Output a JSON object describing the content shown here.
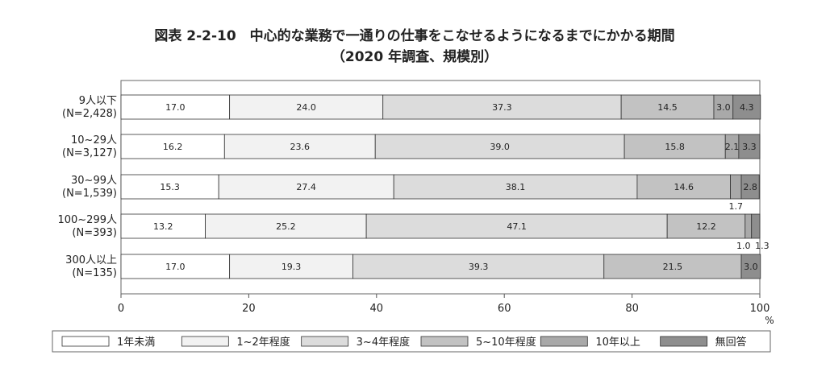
{
  "chart_data": {
    "type": "bar",
    "orientation": "horizontal",
    "stacked": true,
    "title": "図表 2-2-10　中心的な業務で一通りの仕事をこなせるようになるまでにかかる期間",
    "subtitle": "（2020 年調査、規模別）",
    "x_unit": "%",
    "xlim": [
      0,
      100
    ],
    "x_ticks": [
      0,
      20,
      40,
      60,
      80,
      100
    ],
    "grid": false,
    "legend_position": "bottom",
    "categories": [
      [
        "9人以下",
        "(N=2,428)"
      ],
      [
        "10~29人",
        "(N=3,127)"
      ],
      [
        "30~99人",
        "(N=1,539)"
      ],
      [
        "100~299人",
        "(N=393)"
      ],
      [
        "300人以上",
        "(N=135)"
      ]
    ],
    "series": [
      {
        "name": "1年未満",
        "color": "#ffffff",
        "values": [
          17.0,
          16.2,
          15.3,
          13.2,
          17.0
        ]
      },
      {
        "name": "1~2年程度",
        "color": "#f2f2f2",
        "values": [
          24.0,
          23.6,
          27.4,
          25.2,
          19.3
        ]
      },
      {
        "name": "3~4年程度",
        "color": "#dcdcdc",
        "values": [
          37.3,
          39.0,
          38.1,
          47.1,
          39.3
        ]
      },
      {
        "name": "5~10年程度",
        "color": "#c2c2c2",
        "values": [
          14.5,
          15.8,
          14.6,
          12.2,
          21.5
        ]
      },
      {
        "name": "10年以上",
        "color": "#a9a9a9",
        "values": [
          3.0,
          2.1,
          1.7,
          1.0,
          0.0
        ]
      },
      {
        "name": "無回答",
        "color": "#8e8e8e",
        "values": [
          4.3,
          3.3,
          2.8,
          1.3,
          3.0
        ]
      }
    ],
    "data_labels": [
      [
        "17.0",
        "24.0",
        "37.3",
        "14.5",
        "3.0",
        "4.3"
      ],
      [
        "16.2",
        "23.6",
        "39.0",
        "15.8",
        "2.1",
        "3.3"
      ],
      [
        "15.3",
        "27.4",
        "38.1",
        "14.6",
        "1.7",
        "2.8"
      ],
      [
        "13.2",
        "25.2",
        "47.1",
        "12.2",
        "1.0",
        "1.3"
      ],
      [
        "17.0",
        "19.3",
        "39.3",
        "21.5",
        "",
        "3.0"
      ]
    ]
  }
}
